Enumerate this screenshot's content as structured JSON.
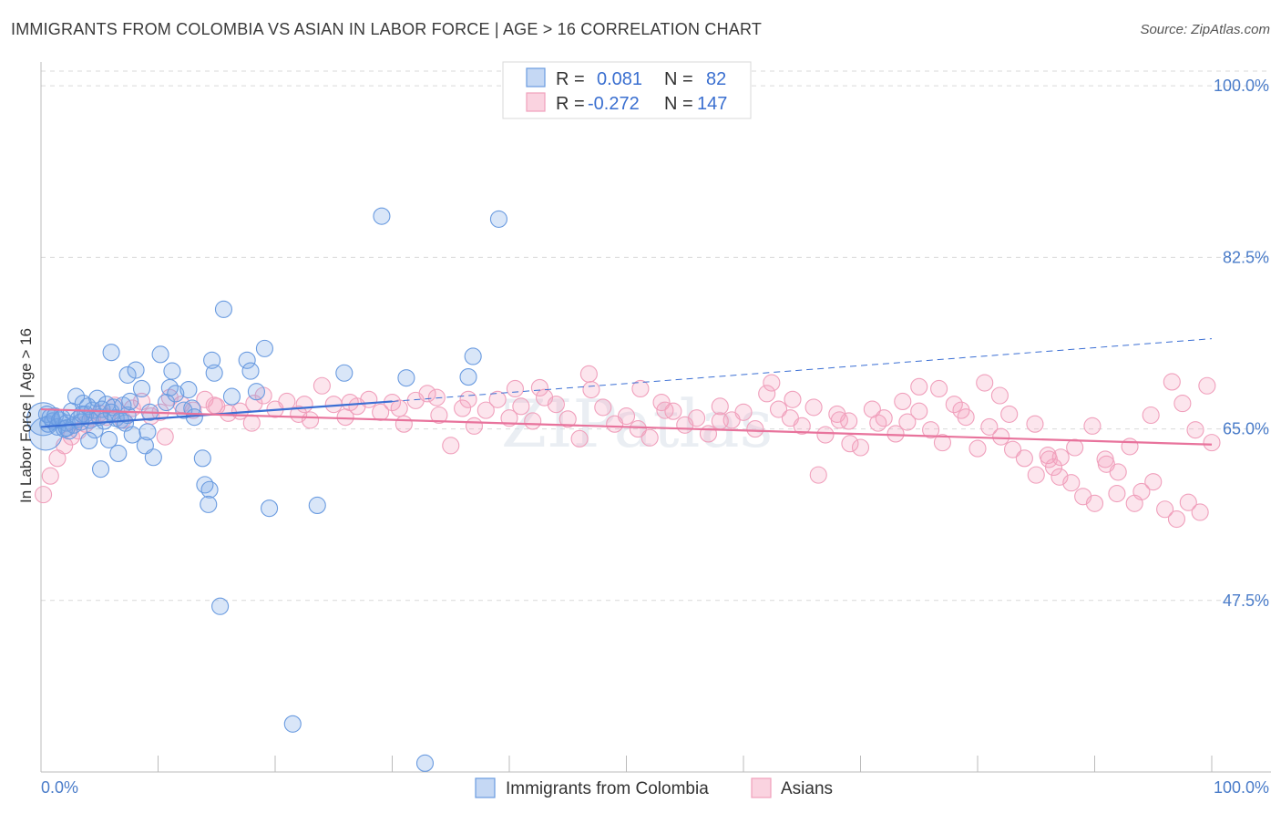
{
  "title": "IMMIGRANTS FROM COLOMBIA VS ASIAN IN LABOR FORCE | AGE > 16 CORRELATION CHART",
  "source": "Source: ZipAtlas.com",
  "watermark": "ZIPatlas",
  "colors": {
    "blue": "#6a9be0",
    "blue_line": "#3b6fd4",
    "pink": "#f0a0bc",
    "pink_line": "#e8739c",
    "tick_text": "#4a7cc9"
  },
  "legend": {
    "rows": [
      {
        "r_label": "R =",
        "r_value": "0.081",
        "n_label": "N =",
        "n_value": "82",
        "color": "blue"
      },
      {
        "r_label": "R =",
        "r_value": "-0.272",
        "n_label": "N =",
        "n_value": "147",
        "color": "pink"
      }
    ]
  },
  "chart_data": {
    "type": "scatter",
    "title": "IMMIGRANTS FROM COLOMBIA VS ASIAN IN LABOR FORCE | AGE > 16 CORRELATION CHART",
    "xlabel": "",
    "ylabel": "In Labor Force | Age > 16",
    "xlim": [
      0,
      100
    ],
    "ylim": [
      30,
      101.5
    ],
    "x_tick_labels": [
      "0.0%",
      "100.0%"
    ],
    "y_ticks": [
      47.5,
      65.0,
      82.5,
      100.0
    ],
    "y_tick_labels": [
      "47.5%",
      "65.0%",
      "82.5%",
      "100.0%"
    ],
    "grid": true,
    "legend_position": "top-center",
    "series": [
      {
        "name": "Immigrants from Colombia",
        "color": "blue",
        "trend": {
          "x0": 0,
          "y0": 65.2,
          "x1": 30,
          "y1": 67.8,
          "dashed_to_x": 100,
          "dashed_to_y": 74.2
        },
        "points": [
          [
            0.2,
            66.0,
            2
          ],
          [
            0.4,
            64.5,
            2
          ],
          [
            0.5,
            66.5,
            1
          ],
          [
            0.6,
            65.5,
            1
          ],
          [
            0.8,
            66.2,
            1
          ],
          [
            1.0,
            65.8,
            1
          ],
          [
            1.2,
            66.3,
            1
          ],
          [
            1.4,
            65.2,
            1
          ],
          [
            1.6,
            65.9,
            1
          ],
          [
            1.8,
            66.1,
            1
          ],
          [
            2.0,
            65.0,
            1
          ],
          [
            2.2,
            65.6,
            1
          ],
          [
            2.4,
            64.8,
            1
          ],
          [
            2.6,
            66.8,
            1
          ],
          [
            2.8,
            65.4,
            1
          ],
          [
            3.0,
            68.3,
            1
          ],
          [
            3.2,
            66.0,
            1
          ],
          [
            3.4,
            65.7,
            1
          ],
          [
            3.6,
            67.6,
            1
          ],
          [
            3.8,
            66.5,
            1
          ],
          [
            4.0,
            67.3,
            1
          ],
          [
            4.2,
            65.9,
            1
          ],
          [
            4.4,
            66.9,
            1
          ],
          [
            4.6,
            64.9,
            1
          ],
          [
            4.8,
            68.1,
            1
          ],
          [
            5.0,
            66.2,
            1
          ],
          [
            5.2,
            67.0,
            1
          ],
          [
            5.4,
            65.8,
            1
          ],
          [
            5.6,
            67.5,
            1
          ],
          [
            5.8,
            63.9,
            1
          ],
          [
            6.0,
            66.7,
            1
          ],
          [
            6.2,
            67.2,
            1
          ],
          [
            6.4,
            66.1,
            1
          ],
          [
            6.6,
            62.5,
            1
          ],
          [
            6.8,
            65.9,
            1
          ],
          [
            7.0,
            67.4,
            1
          ],
          [
            7.2,
            65.6,
            1
          ],
          [
            7.4,
            66.4,
            1
          ],
          [
            7.6,
            67.8,
            1
          ],
          [
            7.8,
            64.4,
            1
          ],
          [
            2.2,
            65.1,
            1
          ],
          [
            3.5,
            66.5,
            1
          ],
          [
            4.1,
            63.8,
            1
          ],
          [
            5.1,
            60.9,
            1
          ],
          [
            6.0,
            72.8,
            1
          ],
          [
            7.4,
            70.5,
            1
          ],
          [
            8.1,
            71.0,
            1
          ],
          [
            8.6,
            69.1,
            1
          ],
          [
            8.9,
            63.3,
            1
          ],
          [
            9.1,
            64.7,
            1
          ],
          [
            9.3,
            66.7,
            1
          ],
          [
            9.6,
            62.1,
            1
          ],
          [
            10.2,
            72.6,
            1
          ],
          [
            10.7,
            67.7,
            1
          ],
          [
            11.0,
            69.2,
            1
          ],
          [
            11.2,
            70.9,
            1
          ],
          [
            11.5,
            68.6,
            1
          ],
          [
            12.2,
            66.9,
            1
          ],
          [
            12.6,
            69.0,
            1
          ],
          [
            12.9,
            67.1,
            1
          ],
          [
            13.1,
            66.2,
            1
          ],
          [
            13.8,
            62.0,
            1
          ],
          [
            14.0,
            59.3,
            1
          ],
          [
            14.3,
            57.3,
            1
          ],
          [
            14.4,
            58.8,
            1
          ],
          [
            14.6,
            72.0,
            1
          ],
          [
            14.8,
            70.7,
            1
          ],
          [
            15.3,
            46.9,
            1
          ],
          [
            15.6,
            77.2,
            1
          ],
          [
            16.3,
            68.3,
            1
          ],
          [
            17.6,
            72.0,
            1
          ],
          [
            17.9,
            70.9,
            1
          ],
          [
            18.4,
            68.8,
            1
          ],
          [
            19.1,
            73.2,
            1
          ],
          [
            19.5,
            56.9,
            1
          ],
          [
            21.5,
            34.9,
            1
          ],
          [
            23.6,
            57.2,
            1
          ],
          [
            25.9,
            70.7,
            1
          ],
          [
            29.1,
            86.7,
            1
          ],
          [
            31.2,
            70.2,
            1
          ],
          [
            32.8,
            30.9,
            1
          ],
          [
            36.5,
            70.3,
            1
          ],
          [
            36.9,
            72.4,
            1
          ],
          [
            39.1,
            86.4,
            1
          ]
        ]
      },
      {
        "name": "Asians",
        "color": "pink",
        "trend": {
          "x0": 0,
          "y0": 67.0,
          "x1": 100,
          "y1": 63.4
        },
        "points": [
          [
            0.2,
            58.3,
            1
          ],
          [
            0.8,
            60.2,
            1
          ],
          [
            1.4,
            62.0,
            1
          ],
          [
            2.0,
            63.3,
            1
          ],
          [
            2.6,
            64.2,
            1
          ],
          [
            3.2,
            64.8,
            1
          ],
          [
            3.8,
            65.5,
            1
          ],
          [
            4.4,
            66.1,
            1
          ],
          [
            5.0,
            66.6,
            1
          ],
          [
            5.6,
            66.2,
            1
          ],
          [
            6.3,
            67.4,
            1
          ],
          [
            7.0,
            65.9,
            1
          ],
          [
            7.8,
            67.1,
            1
          ],
          [
            8.6,
            67.8,
            1
          ],
          [
            9.4,
            66.3,
            1
          ],
          [
            10.2,
            66.7,
            1
          ],
          [
            11.0,
            68.2,
            1
          ],
          [
            12.0,
            67.5,
            1
          ],
          [
            13.0,
            66.9,
            1
          ],
          [
            14.0,
            68.0,
            1
          ],
          [
            15.0,
            67.3,
            1
          ],
          [
            16.0,
            66.6,
            1
          ],
          [
            17.0,
            66.8,
            1
          ],
          [
            18.0,
            65.6,
            1
          ],
          [
            19.0,
            68.4,
            1
          ],
          [
            20.0,
            67.0,
            1
          ],
          [
            21.0,
            67.8,
            1
          ],
          [
            22.0,
            66.5,
            1
          ],
          [
            23.0,
            65.9,
            1
          ],
          [
            24.0,
            69.4,
            1
          ],
          [
            25.0,
            67.5,
            1
          ],
          [
            26.0,
            66.2,
            1
          ],
          [
            27.0,
            67.3,
            1
          ],
          [
            28.0,
            68.0,
            1
          ],
          [
            29.0,
            66.7,
            1
          ],
          [
            30.0,
            67.7,
            1
          ],
          [
            31.0,
            65.5,
            1
          ],
          [
            32.0,
            67.9,
            1
          ],
          [
            33.0,
            68.6,
            1
          ],
          [
            34.0,
            66.4,
            1
          ],
          [
            35.0,
            63.3,
            1
          ],
          [
            36.0,
            67.1,
            1
          ],
          [
            37.0,
            65.3,
            1
          ],
          [
            38.0,
            66.9,
            1
          ],
          [
            39.0,
            68.0,
            1
          ],
          [
            40.0,
            66.1,
            1
          ],
          [
            41.0,
            67.3,
            1
          ],
          [
            42.0,
            65.8,
            1
          ],
          [
            43.0,
            68.2,
            1
          ],
          [
            44.0,
            67.5,
            1
          ],
          [
            45.0,
            66.0,
            1
          ],
          [
            46.0,
            64.0,
            1
          ],
          [
            47.0,
            69.0,
            1
          ],
          [
            48.0,
            67.2,
            1
          ],
          [
            49.0,
            65.5,
            1
          ],
          [
            50.0,
            66.3,
            1
          ],
          [
            51.0,
            65.0,
            1
          ],
          [
            52.0,
            64.1,
            1
          ],
          [
            53.0,
            67.7,
            1
          ],
          [
            54.0,
            66.8,
            1
          ],
          [
            55.0,
            65.4,
            1
          ],
          [
            56.0,
            66.1,
            1
          ],
          [
            57.0,
            64.5,
            1
          ],
          [
            58.0,
            67.3,
            1
          ],
          [
            59.0,
            65.9,
            1
          ],
          [
            60.0,
            66.7,
            1
          ],
          [
            61.0,
            65.0,
            1
          ],
          [
            62.0,
            68.6,
            1
          ],
          [
            63.0,
            67.0,
            1
          ],
          [
            64.0,
            66.1,
            1
          ],
          [
            65.0,
            65.3,
            1
          ],
          [
            66.0,
            67.2,
            1
          ],
          [
            67.0,
            64.4,
            1
          ],
          [
            68.0,
            66.5,
            1
          ],
          [
            69.0,
            65.8,
            1
          ],
          [
            70.0,
            63.1,
            1
          ],
          [
            71.0,
            67.0,
            1
          ],
          [
            72.0,
            66.1,
            1
          ],
          [
            73.0,
            64.5,
            1
          ],
          [
            74.0,
            65.7,
            1
          ],
          [
            75.0,
            66.8,
            1
          ],
          [
            76.0,
            64.9,
            1
          ],
          [
            77.0,
            63.6,
            1
          ],
          [
            78.0,
            67.5,
            1
          ],
          [
            79.0,
            66.2,
            1
          ],
          [
            80.0,
            63.0,
            1
          ],
          [
            81.0,
            65.2,
            1
          ],
          [
            82.0,
            64.2,
            1
          ],
          [
            83.0,
            62.9,
            1
          ],
          [
            84.0,
            62.0,
            1
          ],
          [
            85.0,
            60.3,
            1
          ],
          [
            86.0,
            62.3,
            1
          ],
          [
            87.0,
            60.1,
            1
          ],
          [
            88.0,
            59.5,
            1
          ],
          [
            89.0,
            58.1,
            1
          ],
          [
            90.0,
            57.4,
            1
          ],
          [
            91.0,
            61.4,
            1
          ],
          [
            92.0,
            60.6,
            1
          ],
          [
            93.0,
            63.2,
            1
          ],
          [
            94.0,
            58.6,
            1
          ],
          [
            95.0,
            59.6,
            1
          ],
          [
            96.0,
            56.8,
            1
          ],
          [
            97.0,
            55.8,
            1
          ],
          [
            98.0,
            57.5,
            1
          ],
          [
            99.0,
            56.5,
            1
          ],
          [
            100.0,
            63.6,
            1
          ],
          [
            10.6,
            64.2,
            1
          ],
          [
            14.8,
            67.4,
            1
          ],
          [
            18.2,
            67.6,
            1
          ],
          [
            22.5,
            67.5,
            1
          ],
          [
            26.4,
            67.7,
            1
          ],
          [
            30.6,
            67.1,
            1
          ],
          [
            33.8,
            68.2,
            1
          ],
          [
            36.5,
            68.0,
            1
          ],
          [
            40.5,
            69.1,
            1
          ],
          [
            42.6,
            69.2,
            1
          ],
          [
            46.8,
            70.6,
            1
          ],
          [
            51.2,
            69.1,
            1
          ],
          [
            53.3,
            66.9,
            1
          ],
          [
            58.0,
            65.8,
            1
          ],
          [
            62.4,
            69.7,
            1
          ],
          [
            64.2,
            68.0,
            1
          ],
          [
            66.4,
            60.3,
            1
          ],
          [
            68.2,
            65.9,
            1
          ],
          [
            69.1,
            63.5,
            1
          ],
          [
            71.5,
            65.6,
            1
          ],
          [
            73.6,
            67.8,
            1
          ],
          [
            75.0,
            69.3,
            1
          ],
          [
            76.7,
            69.1,
            1
          ],
          [
            78.6,
            66.9,
            1
          ],
          [
            80.6,
            69.7,
            1
          ],
          [
            81.9,
            68.4,
            1
          ],
          [
            82.7,
            66.5,
            1
          ],
          [
            84.9,
            65.5,
            1
          ],
          [
            86.1,
            61.9,
            1
          ],
          [
            86.5,
            61.1,
            1
          ],
          [
            87.1,
            62.1,
            1
          ],
          [
            88.3,
            63.1,
            1
          ],
          [
            89.8,
            65.3,
            1
          ],
          [
            90.9,
            61.9,
            1
          ],
          [
            91.9,
            58.4,
            1
          ],
          [
            93.4,
            57.4,
            1
          ],
          [
            94.8,
            66.4,
            1
          ],
          [
            96.6,
            69.8,
            1
          ],
          [
            97.5,
            67.6,
            1
          ],
          [
            98.6,
            64.9,
            1
          ],
          [
            99.6,
            69.4,
            1
          ]
        ]
      }
    ]
  },
  "bottom_legend": [
    {
      "label": "Immigrants from Colombia",
      "color": "blue"
    },
    {
      "label": "Asians",
      "color": "pink"
    }
  ]
}
